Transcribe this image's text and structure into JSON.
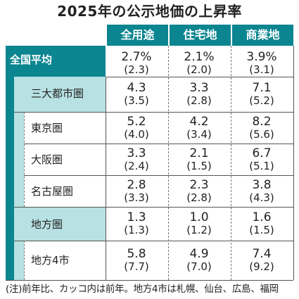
{
  "title": "2025年の公示地価の上昇率",
  "columns": [
    "全用途",
    "住宅地",
    "商業地"
  ],
  "rows": [
    {
      "label": "全国平均",
      "values": [
        "2.7%",
        "2.1%",
        "3.9%"
      ],
      "prev": [
        "(2.3)",
        "(2.0)",
        "(3.1)"
      ]
    },
    {
      "label": "三大都市圏",
      "values": [
        "4.3",
        "3.3",
        "7.1"
      ],
      "prev": [
        "(3.5)",
        "(2.8)",
        "(5.2)"
      ]
    },
    {
      "label": "東京圏",
      "values": [
        "5.2",
        "4.2",
        "8.2"
      ],
      "prev": [
        "(4.0)",
        "(3.4)",
        "(5.6)"
      ]
    },
    {
      "label": "大阪圏",
      "values": [
        "3.3",
        "2.1",
        "6.7"
      ],
      "prev": [
        "(2.4)",
        "(1.5)",
        "(5.1)"
      ]
    },
    {
      "label": "名古屋圏",
      "values": [
        "2.8",
        "2.3",
        "3.8"
      ],
      "prev": [
        "(3.3)",
        "(2.8)",
        "(4.3)"
      ]
    },
    {
      "label": "地方圏",
      "values": [
        "1.3",
        "1.0",
        "1.6"
      ],
      "prev": [
        "(1.3)",
        "(1.2)",
        "(1.5)"
      ]
    },
    {
      "label": "地方4市",
      "values": [
        "5.8",
        "4.9",
        "7.4"
      ],
      "prev": [
        "(7.7)",
        "(7.0)",
        "(9.2)"
      ]
    }
  ],
  "note": "(注)前年比、カッコ内は前年。地方4市は札幌、仙台、広島、福岡",
  "chart_data": {
    "type": "table",
    "title": "2025年の公示地価の上昇率",
    "unit": "%",
    "columns": [
      "全用途",
      "住宅地",
      "商業地"
    ],
    "rows": [
      {
        "label": "全国平均",
        "current": [
          2.7,
          2.1,
          3.9
        ],
        "previous": [
          2.3,
          2.0,
          3.1
        ]
      },
      {
        "label": "三大都市圏",
        "current": [
          4.3,
          3.3,
          7.1
        ],
        "previous": [
          3.5,
          2.8,
          5.2
        ]
      },
      {
        "label": "東京圏",
        "current": [
          5.2,
          4.2,
          8.2
        ],
        "previous": [
          4.0,
          3.4,
          5.6
        ]
      },
      {
        "label": "大阪圏",
        "current": [
          3.3,
          2.1,
          6.7
        ],
        "previous": [
          2.4,
          1.5,
          5.1
        ]
      },
      {
        "label": "名古屋圏",
        "current": [
          2.8,
          2.3,
          3.8
        ],
        "previous": [
          3.3,
          2.8,
          4.3
        ]
      },
      {
        "label": "地方圏",
        "current": [
          1.3,
          1.0,
          1.6
        ],
        "previous": [
          1.3,
          1.2,
          1.5
        ]
      },
      {
        "label": "地方4市",
        "current": [
          5.8,
          4.9,
          7.4
        ],
        "previous": [
          7.7,
          7.0,
          9.2
        ]
      }
    ]
  },
  "colors": {
    "header": "#0b8590",
    "light": "#b7e1e3",
    "text": "#222222"
  }
}
